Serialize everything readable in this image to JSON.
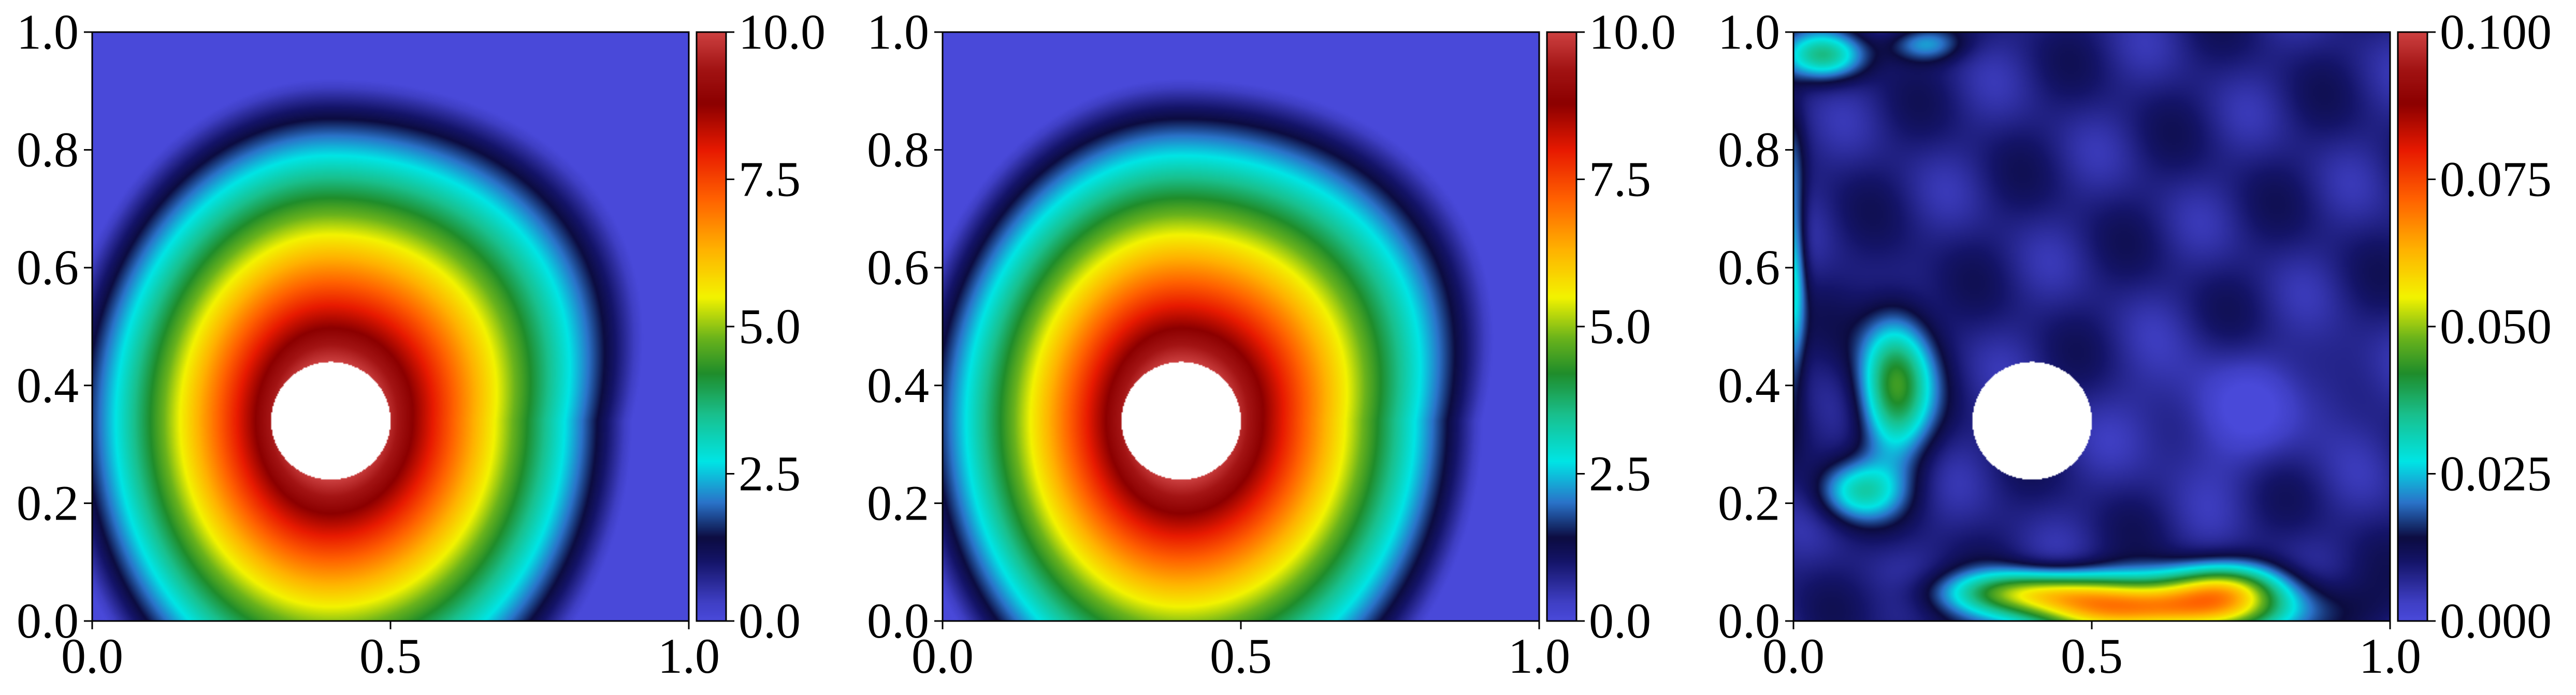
{
  "chart_data": [
    {
      "type": "heatmap",
      "title": "",
      "xlabel": "",
      "ylabel": "",
      "xlim": [
        0.0,
        1.0
      ],
      "ylim": [
        0.0,
        1.0
      ],
      "x_ticks": [
        "0.0",
        "0.5",
        "1.0"
      ],
      "x_tick_values": [
        0.0,
        0.5,
        1.0
      ],
      "y_ticks": [
        "0.0",
        "0.2",
        "0.4",
        "0.6",
        "0.8",
        "1.0"
      ],
      "y_tick_values": [
        0.0,
        0.2,
        0.4,
        0.6,
        0.8,
        1.0
      ],
      "hole": {
        "cx": 0.4,
        "cy": 0.34,
        "r": 0.1
      },
      "field": {
        "kind": "rings",
        "peak": 10.0,
        "ring_width": 0.48,
        "stretch_x": 0.87,
        "stretch_y": 1.0,
        "right_drift_high": 0.12,
        "left_drift_low": 0.08
      },
      "colorbar": {
        "min": 0.0,
        "max": 10.0,
        "ticks": [
          "0.0",
          "2.5",
          "5.0",
          "7.5",
          "10.0"
        ],
        "tick_values": [
          0.0,
          2.5,
          5.0,
          7.5,
          10.0
        ]
      },
      "grid": false,
      "legend": "none"
    },
    {
      "type": "heatmap",
      "title": "",
      "xlabel": "",
      "ylabel": "",
      "xlim": [
        0.0,
        1.0
      ],
      "ylim": [
        0.0,
        1.0
      ],
      "x_ticks": [
        "0.0",
        "0.5",
        "1.0"
      ],
      "x_tick_values": [
        0.0,
        0.5,
        1.0
      ],
      "y_ticks": [
        "0.0",
        "0.2",
        "0.4",
        "0.6",
        "0.8",
        "1.0"
      ],
      "y_tick_values": [
        0.0,
        0.2,
        0.4,
        0.6,
        0.8,
        1.0
      ],
      "hole": {
        "cx": 0.4,
        "cy": 0.34,
        "r": 0.1
      },
      "field": {
        "kind": "rings",
        "peak": 10.0,
        "ring_width": 0.48,
        "stretch_x": 0.87,
        "stretch_y": 1.0,
        "right_drift_high": 0.12,
        "left_drift_low": 0.08
      },
      "colorbar": {
        "min": 0.0,
        "max": 10.0,
        "ticks": [
          "0.0",
          "2.5",
          "5.0",
          "7.5",
          "10.0"
        ],
        "tick_values": [
          0.0,
          2.5,
          5.0,
          7.5,
          10.0
        ]
      },
      "grid": false,
      "legend": "none"
    },
    {
      "type": "heatmap",
      "title": "",
      "xlabel": "",
      "ylabel": "",
      "xlim": [
        0.0,
        1.0
      ],
      "ylim": [
        0.0,
        1.0
      ],
      "x_ticks": [
        "0.0",
        "0.5",
        "1.0"
      ],
      "x_tick_values": [
        0.0,
        0.5,
        1.0
      ],
      "y_ticks": [
        "0.0",
        "0.2",
        "0.4",
        "0.6",
        "0.8",
        "1.0"
      ],
      "y_tick_values": [
        0.0,
        0.2,
        0.4,
        0.6,
        0.8,
        1.0
      ],
      "hole": {
        "cx": 0.4,
        "cy": 0.34,
        "r": 0.1
      },
      "field": {
        "kind": "blobs",
        "base": 0.008,
        "blobs": [
          {
            "x": 0.6,
            "y": 0.02,
            "sx": 0.22,
            "sy": 0.05,
            "v": 0.06
          },
          {
            "x": 0.4,
            "y": 0.05,
            "sx": 0.14,
            "sy": 0.035,
            "v": 0.03
          },
          {
            "x": 0.72,
            "y": 0.06,
            "sx": 0.1,
            "sy": 0.04,
            "v": 0.025
          },
          {
            "x": 0.17,
            "y": 0.4,
            "sx": 0.06,
            "sy": 0.12,
            "v": 0.035
          },
          {
            "x": 0.11,
            "y": 0.22,
            "sx": 0.07,
            "sy": 0.05,
            "v": 0.02
          },
          {
            "x": 0.05,
            "y": 0.96,
            "sx": 0.07,
            "sy": 0.04,
            "v": 0.025
          },
          {
            "x": 0.0,
            "y": 0.6,
            "sx": 0.02,
            "sy": 0.2,
            "v": 0.02
          },
          {
            "x": 0.22,
            "y": 0.98,
            "sx": 0.06,
            "sy": 0.03,
            "v": 0.015
          },
          {
            "x": 0.72,
            "y": 0.35,
            "sx": 0.14,
            "sy": 0.1,
            "v": -0.007
          },
          {
            "x": 0.9,
            "y": 0.4,
            "sx": 0.06,
            "sy": 0.08,
            "v": -0.004
          }
        ]
      },
      "colorbar": {
        "min": 0.0,
        "max": 0.1,
        "ticks": [
          "0.000",
          "0.025",
          "0.050",
          "0.075",
          "0.100"
        ],
        "tick_values": [
          0.0,
          0.025,
          0.05,
          0.075,
          0.1
        ]
      },
      "grid": false,
      "legend": "none"
    }
  ],
  "colormap": [
    [
      0.0,
      "#4949d9"
    ],
    [
      0.03,
      "#3f3fc4"
    ],
    [
      0.1,
      "#141468"
    ],
    [
      0.14,
      "#0c0c40"
    ],
    [
      0.2,
      "#2a73c9"
    ],
    [
      0.27,
      "#00e5e5"
    ],
    [
      0.35,
      "#19c08d"
    ],
    [
      0.42,
      "#1f8d2b"
    ],
    [
      0.48,
      "#6ab31c"
    ],
    [
      0.55,
      "#f3f300"
    ],
    [
      0.63,
      "#ffb300"
    ],
    [
      0.72,
      "#ff5f00"
    ],
    [
      0.8,
      "#e81a00"
    ],
    [
      0.88,
      "#8c0000"
    ],
    [
      0.94,
      "#a31414"
    ],
    [
      1.0,
      "#cc4040"
    ]
  ]
}
